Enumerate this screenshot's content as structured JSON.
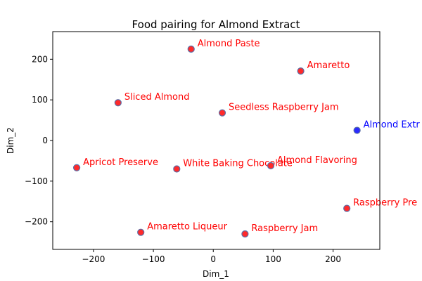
{
  "chart_data": {
    "type": "scatter",
    "title": "Food pairing for Almond Extract",
    "xlabel": "Dim_1",
    "ylabel": "Dim_2",
    "xlim": [
      -268,
      278
    ],
    "ylim": [
      -268,
      268
    ],
    "xticks": [
      -200,
      -100,
      0,
      100,
      200
    ],
    "yticks": [
      -200,
      -100,
      0,
      100,
      200
    ],
    "grid": false,
    "points": [
      {
        "label": "Almond Paste",
        "x": -37,
        "y": 225,
        "color": "#ff2a2a",
        "label_color": "#ff0000"
      },
      {
        "label": "Amaretto",
        "x": 146,
        "y": 171,
        "color": "#ff2a2a",
        "label_color": "#ff0000"
      },
      {
        "label": "Sliced Almond",
        "x": -159,
        "y": 93,
        "color": "#ff2a2a",
        "label_color": "#ff0000"
      },
      {
        "label": "Seedless Raspberry Jam",
        "x": 15,
        "y": 68,
        "color": "#ff2a2a",
        "label_color": "#ff0000"
      },
      {
        "label": "Almond Extr",
        "x": 240,
        "y": 25,
        "color": "#2a2aff",
        "label_color": "#0000ff"
      },
      {
        "label": "Apricot Preserve",
        "x": -228,
        "y": -67,
        "color": "#ff2a2a",
        "label_color": "#ff0000"
      },
      {
        "label": "White Baking Chocolate",
        "x": -61,
        "y": -70,
        "color": "#ff2a2a",
        "label_color": "#ff0000"
      },
      {
        "label": "Almond Flavoring",
        "x": 96,
        "y": -62,
        "color": "#ff2a2a",
        "label_color": "#ff0000"
      },
      {
        "label": "Raspberry Pre",
        "x": 223,
        "y": -167,
        "color": "#ff2a2a",
        "label_color": "#ff0000"
      },
      {
        "label": "Amaretto Liqueur",
        "x": -121,
        "y": -226,
        "color": "#ff2a2a",
        "label_color": "#ff0000"
      },
      {
        "label": "Raspberry Jam",
        "x": 53,
        "y": -230,
        "color": "#ff2a2a",
        "label_color": "#ff0000"
      }
    ],
    "point_edge_color": "#5b6fa8"
  }
}
